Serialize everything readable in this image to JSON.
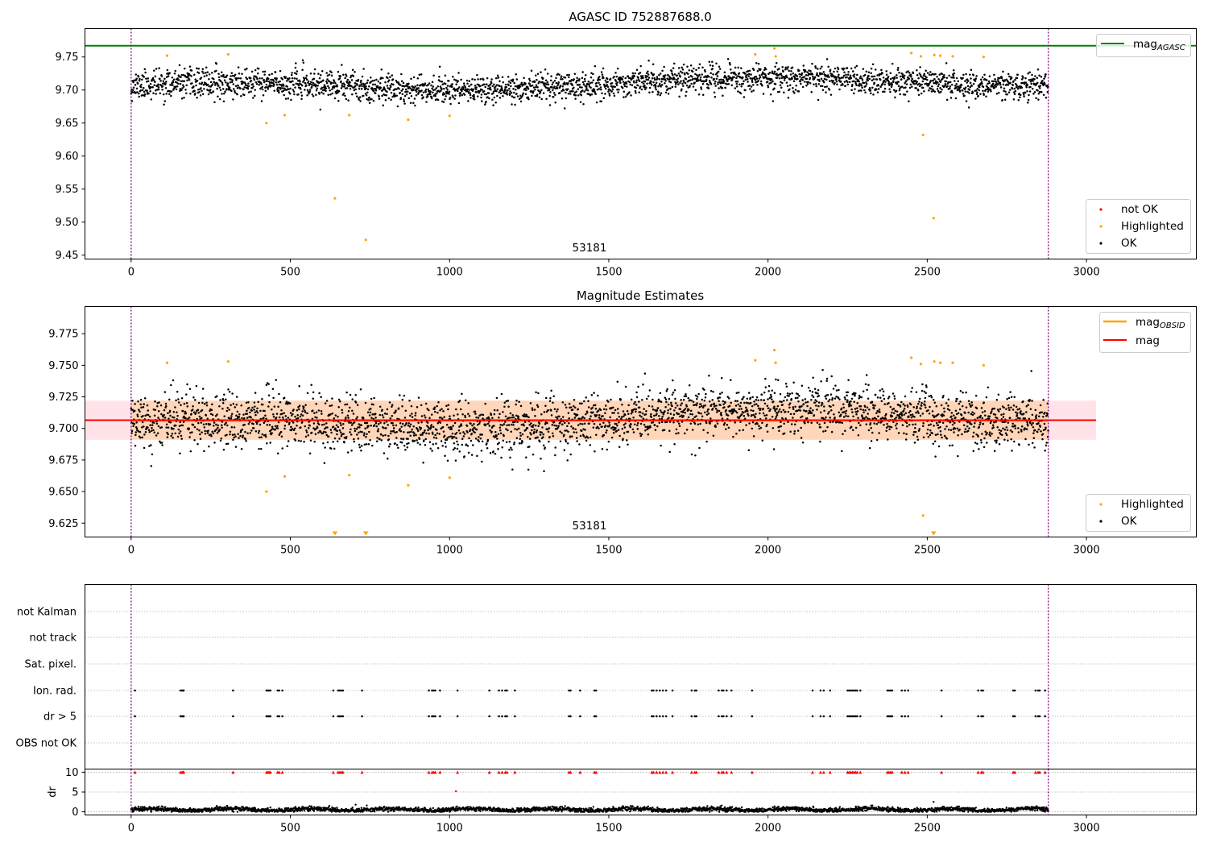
{
  "colors": {
    "ok": "#000000",
    "not_ok": "#ff0000",
    "highlighted": "#ffa500",
    "mag_agasc": "#008000",
    "mag_obsid": "#ffa500",
    "mag": "#ff0000",
    "band": "#ffc0cb",
    "obs_line": "#800080",
    "grid": "#b0b0b0"
  },
  "chart_data": [
    {
      "id": "top",
      "type": "scatter",
      "title": "AGASC ID 752887688.0",
      "xlim": [
        -145,
        3345
      ],
      "ylim": [
        9.444,
        9.793
      ],
      "xticks": [
        0,
        500,
        1000,
        1500,
        2000,
        2500,
        3000
      ],
      "yticks": [
        9.45,
        9.5,
        9.55,
        9.6,
        9.65,
        9.7,
        9.75
      ],
      "ytick_labels": [
        "9.45",
        "9.50",
        "9.55",
        "9.60",
        "9.65",
        "9.70",
        "9.75"
      ],
      "obs_boundaries": [
        0,
        2880
      ],
      "obsid_label": {
        "text": "53181",
        "x": 1440,
        "y": 9.455
      },
      "mag_agasc": 9.767,
      "ok_series": {
        "name": "OK",
        "n": 2880,
        "x_range": [
          0,
          2880
        ],
        "mean": 9.708,
        "sigma": 0.013
      },
      "highlighted": [
        {
          "x": 113,
          "y": 9.752
        },
        {
          "x": 305,
          "y": 9.754
        },
        {
          "x": 425,
          "y": 9.65
        },
        {
          "x": 482,
          "y": 9.662
        },
        {
          "x": 640,
          "y": 9.536
        },
        {
          "x": 685,
          "y": 9.662
        },
        {
          "x": 737,
          "y": 9.473
        },
        {
          "x": 870,
          "y": 9.655
        },
        {
          "x": 1000,
          "y": 9.661
        },
        {
          "x": 1960,
          "y": 9.754
        },
        {
          "x": 2020,
          "y": 9.763
        },
        {
          "x": 2024,
          "y": 9.751
        },
        {
          "x": 2450,
          "y": 9.756
        },
        {
          "x": 2480,
          "y": 9.751
        },
        {
          "x": 2487,
          "y": 9.632
        },
        {
          "x": 2520,
          "y": 9.506
        },
        {
          "x": 2522,
          "y": 9.753
        },
        {
          "x": 2541,
          "y": 9.752
        },
        {
          "x": 2580,
          "y": 9.751
        },
        {
          "x": 2677,
          "y": 9.75
        }
      ],
      "legend_mag": {
        "label": "mag",
        "subscript": "AGASC"
      },
      "legend_points": [
        "not OK",
        "Highlighted",
        "OK"
      ]
    },
    {
      "id": "middle",
      "type": "scatter",
      "title": "Magnitude Estimates",
      "xlim": [
        -145,
        3345
      ],
      "ylim": [
        9.614,
        9.7965
      ],
      "xticks": [
        0,
        500,
        1000,
        1500,
        2000,
        2500,
        3000
      ],
      "yticks": [
        9.625,
        9.65,
        9.675,
        9.7,
        9.725,
        9.75,
        9.775
      ],
      "ytick_labels": [
        "9.625",
        "9.650",
        "9.675",
        "9.700",
        "9.725",
        "9.750",
        "9.775"
      ],
      "obs_boundaries": [
        0,
        2880
      ],
      "obsid_label": {
        "text": "53181",
        "x": 1440,
        "y": 9.618
      },
      "mag": 9.7065,
      "mag_band": [
        9.691,
        9.722
      ],
      "mag_x_range": [
        -145,
        3030
      ],
      "mag_obsid": 9.706,
      "mag_obsid_band": [
        9.691,
        9.722
      ],
      "mag_obsid_x_range": [
        0,
        2880
      ],
      "ok_series": {
        "name": "OK",
        "n": 2880,
        "x_range": [
          0,
          2880
        ],
        "mean": 9.706,
        "sigma": 0.013
      },
      "highlighted": [
        {
          "x": 113,
          "y": 9.752
        },
        {
          "x": 305,
          "y": 9.753
        },
        {
          "x": 425,
          "y": 9.65
        },
        {
          "x": 482,
          "y": 9.662
        },
        {
          "x": 685,
          "y": 9.663
        },
        {
          "x": 870,
          "y": 9.655
        },
        {
          "x": 1000,
          "y": 9.661
        },
        {
          "x": 1960,
          "y": 9.754
        },
        {
          "x": 2020,
          "y": 9.762
        },
        {
          "x": 2024,
          "y": 9.752
        },
        {
          "x": 2450,
          "y": 9.756
        },
        {
          "x": 2480,
          "y": 9.751
        },
        {
          "x": 2487,
          "y": 9.631
        },
        {
          "x": 2522,
          "y": 9.753
        },
        {
          "x": 2541,
          "y": 9.752
        },
        {
          "x": 2580,
          "y": 9.752
        },
        {
          "x": 2677,
          "y": 9.75
        }
      ],
      "off_scale_markers": [
        {
          "x": 640
        },
        {
          "x": 737
        },
        {
          "x": 2520
        }
      ],
      "legend_lines": [
        {
          "label": "mag",
          "subscript": "OBSID",
          "color_key": "mag_obsid"
        },
        {
          "label": "mag",
          "subscript": "",
          "color_key": "mag"
        }
      ],
      "legend_points": [
        "Highlighted",
        "OK"
      ]
    },
    {
      "id": "flags",
      "type": "scatter",
      "xlim": [
        -145,
        3345
      ],
      "categories": [
        "OBS not OK",
        "dr > 5",
        "Ion. rad.",
        "Sat. pixel.",
        "not track",
        "not Kalman"
      ],
      "obs_boundaries": [
        0,
        2880
      ],
      "flag_times": [
        12,
        155,
        160,
        163,
        165,
        320,
        425,
        430,
        433,
        437,
        460,
        465,
        475,
        635,
        650,
        655,
        660,
        665,
        725,
        935,
        945,
        950,
        955,
        970,
        1025,
        1125,
        1155,
        1165,
        1175,
        1180,
        1205,
        1375,
        1380,
        1410,
        1455,
        1460,
        1635,
        1640,
        1650,
        1660,
        1670,
        1680,
        1700,
        1760,
        1770,
        1775,
        1845,
        1855,
        1860,
        1870,
        1885,
        1950,
        2140,
        2165,
        2175,
        2195,
        2250,
        2255,
        2260,
        2265,
        2270,
        2275,
        2280,
        2290,
        2375,
        2380,
        2385,
        2390,
        2420,
        2430,
        2440,
        2545,
        2660,
        2670,
        2675,
        2770,
        2775,
        2840,
        2848,
        2853,
        2870
      ]
    },
    {
      "id": "dr",
      "type": "scatter",
      "ylabel": "dr",
      "xlim": [
        -145,
        3345
      ],
      "ylim": [
        -0.8,
        10.8
      ],
      "xticks": [
        0,
        500,
        1000,
        1500,
        2000,
        2500,
        3000
      ],
      "yticks": [
        0,
        5,
        10
      ],
      "ytick_labels": [
        "0",
        "5",
        "10"
      ],
      "obs_boundaries": [
        0,
        2880
      ],
      "dr_clip": 10,
      "ok_series": {
        "name": "OK",
        "n": 2880,
        "x_range": [
          0,
          2880
        ],
        "mean": 0.55,
        "sigma": 0.28
      },
      "outliers": [
        {
          "x": 1020,
          "y": 5.2
        },
        {
          "x": 2520,
          "y": 2.5
        },
        {
          "x": 705,
          "y": 1.8
        },
        {
          "x": 740,
          "y": 1.6
        }
      ]
    }
  ]
}
